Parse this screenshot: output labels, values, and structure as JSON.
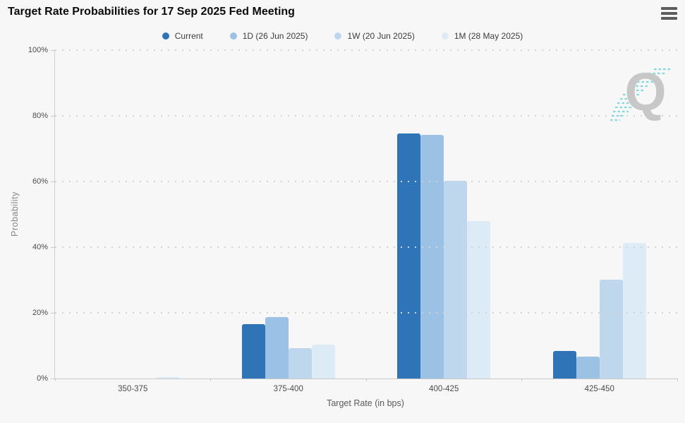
{
  "header": {
    "title": "Target Rate Probabilities for 17 Sep 2025 Fed Meeting",
    "menu_icon": "hamburger-icon"
  },
  "chart_data": {
    "type": "bar",
    "title": "Target Rate Probabilities for 17 Sep 2025 Fed Meeting",
    "categories": [
      "350-375",
      "375-400",
      "400-425",
      "425-450"
    ],
    "series": [
      {
        "name": "Current",
        "color": "#2f74b6",
        "values": [
          0,
          16.6,
          74.7,
          8.4
        ]
      },
      {
        "name": "1D (26 Jun 2025)",
        "color": "#9bc1e4",
        "values": [
          0,
          18.8,
          74.1,
          6.7
        ]
      },
      {
        "name": "1W (20 Jun 2025)",
        "color": "#bed7ec",
        "values": [
          0,
          9.3,
          60.2,
          30.2
        ]
      },
      {
        "name": "1M (28 May 2025)",
        "color": "#dcebf6",
        "values": [
          0.4,
          10.4,
          48.0,
          41.2
        ]
      }
    ],
    "xlabel": "Target Rate (in bps)",
    "ylabel": "Probability",
    "ylim": [
      0,
      100
    ],
    "yticks": [
      "0%",
      "20%",
      "40%",
      "60%",
      "80%",
      "100%"
    ],
    "grid": "horizontal-dotted",
    "legend_position": "top",
    "background": "#f7f7f7"
  },
  "watermark": {
    "letter": "Q"
  }
}
